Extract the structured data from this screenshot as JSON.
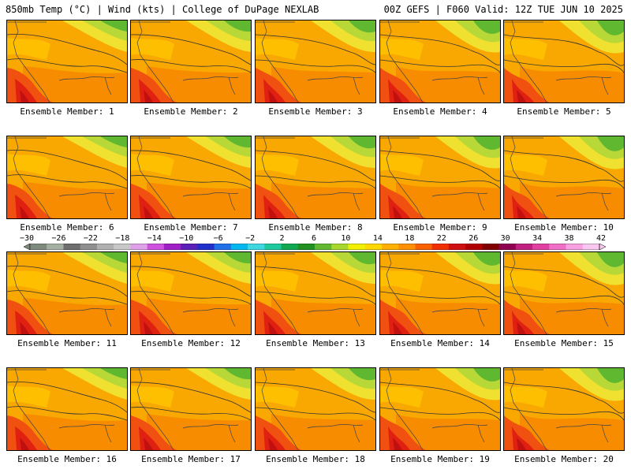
{
  "header": {
    "left": "850mb Temp (°C) | Wind (kts) | College of DuPage NEXLAB",
    "right": "00Z GEFS | F060 Valid: 12Z TUE JUN 10 2025"
  },
  "panel_label_prefix": "Ensemble Member:",
  "members": [
    "1",
    "2",
    "3",
    "4",
    "5",
    "6",
    "7",
    "8",
    "9",
    "10",
    "11",
    "12",
    "13",
    "14",
    "15",
    "16",
    "17",
    "18",
    "19",
    "20"
  ],
  "colorbar": {
    "ticks": [
      "−30",
      "−26",
      "−22",
      "−18",
      "−14",
      "−10",
      "−6",
      "−2",
      "2",
      "6",
      "10",
      "14",
      "18",
      "22",
      "26",
      "30",
      "34",
      "38",
      "42"
    ],
    "colors": [
      "#7f8a7f",
      "#a5b0a5",
      "#6e6e6e",
      "#8f8f8f",
      "#b0b0b0",
      "#c8c8c8",
      "#e0a0e8",
      "#d050e0",
      "#a020c8",
      "#5a20b8",
      "#2030c8",
      "#2070e8",
      "#00b8f0",
      "#40d8e0",
      "#20c8a0",
      "#10a850",
      "#209020",
      "#60b830",
      "#a8d830",
      "#f0f000",
      "#ffd800",
      "#ffb000",
      "#ff9000",
      "#f86000",
      "#f03000",
      "#d01010",
      "#b00000",
      "#800000",
      "#900050",
      "#c02080",
      "#e040a0",
      "#f070c8",
      "#f8a0e0",
      "#f8c8f0"
    ]
  }
}
